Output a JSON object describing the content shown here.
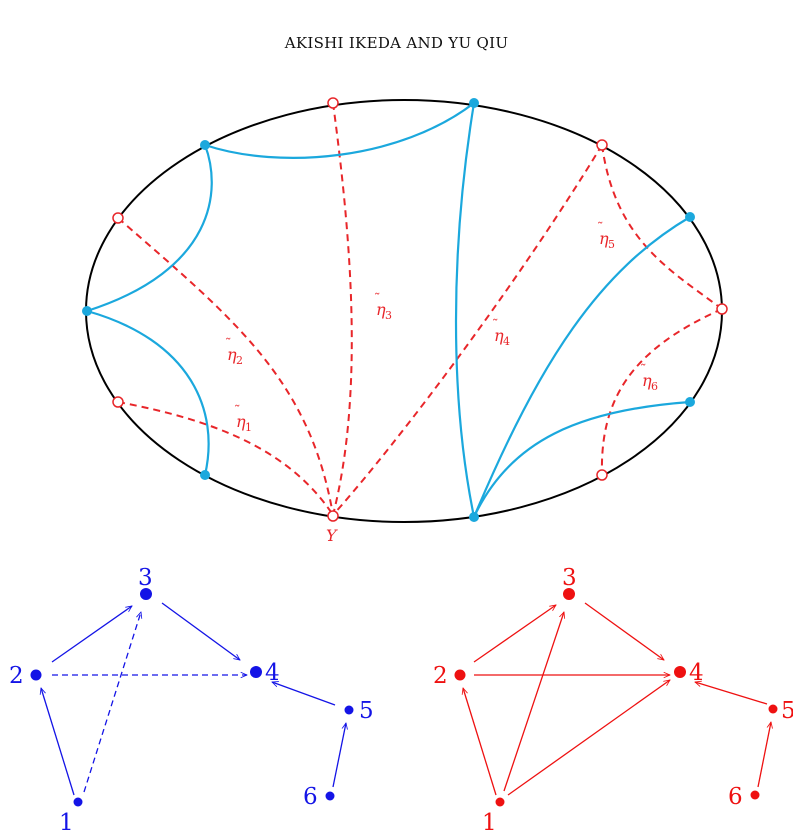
{
  "header": {
    "running_head": "AKISHI IKEDA AND YU QIU"
  },
  "colors": {
    "arc": "#1ba8dd",
    "eta": "#e8262a",
    "blue_quiver": "#1414e6",
    "red_quiver": "#ee1111",
    "boundary": "#000000"
  },
  "surface": {
    "arc_labels": {
      "eta1": {
        "base": "η",
        "sub": "1"
      },
      "eta2": {
        "base": "η",
        "sub": "2"
      },
      "eta3": {
        "base": "η",
        "sub": "3"
      },
      "eta4": {
        "base": "η",
        "sub": "4"
      },
      "eta5": {
        "base": "η",
        "sub": "5"
      },
      "eta6": {
        "base": "η",
        "sub": "6"
      }
    },
    "point_label": "Y"
  },
  "quiver_blue": {
    "labels": [
      "1",
      "2",
      "3",
      "4",
      "5",
      "6"
    ]
  },
  "quiver_red": {
    "labels": [
      "1",
      "2",
      "3",
      "4",
      "5",
      "6"
    ]
  }
}
